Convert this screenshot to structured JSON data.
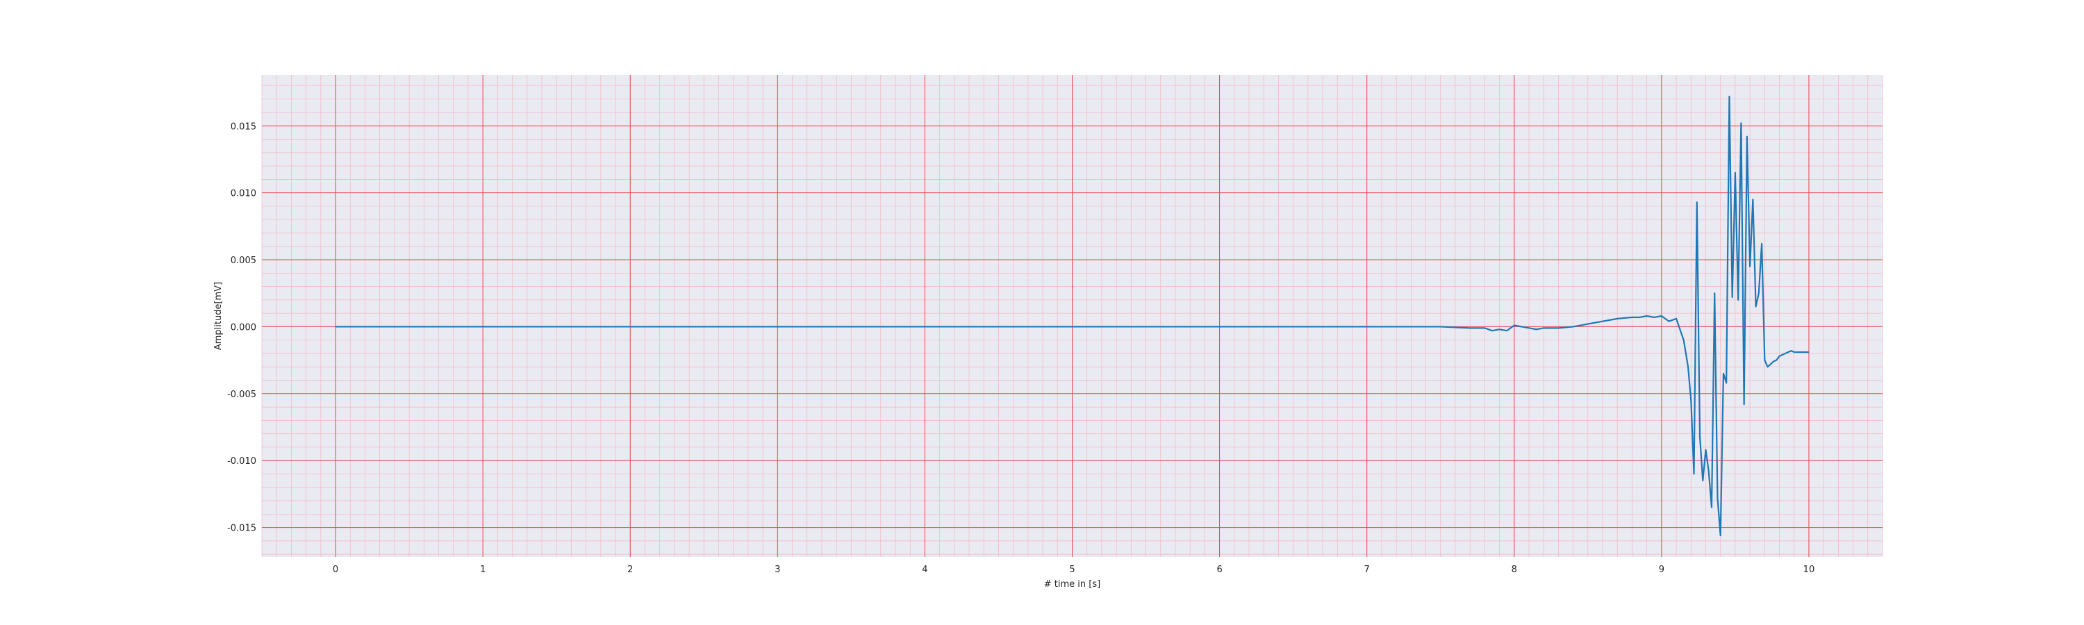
{
  "chart_data": {
    "type": "line",
    "title": "",
    "xlabel": "# time in [s]",
    "ylabel": "Amplitude[mV]",
    "xlim": [
      -0.5,
      10.5
    ],
    "ylim": [
      -0.0172,
      0.0188
    ],
    "x_ticks": [
      0,
      1,
      2,
      3,
      4,
      5,
      6,
      7,
      8,
      9,
      10
    ],
    "x_tick_labels": [
      "0",
      "1",
      "2",
      "3",
      "4",
      "5",
      "6",
      "7",
      "8",
      "9",
      "10"
    ],
    "y_ticks": [
      0.015,
      0.01,
      0.005,
      0.0,
      -0.005,
      -0.01,
      -0.015
    ],
    "y_tick_labels": [
      "0.015",
      "0.010",
      "0.005",
      "0.000",
      "-0.005",
      "-0.010",
      "-0.015"
    ],
    "grid": true,
    "minor_grid": true,
    "colors": {
      "background": "#eaeaf2",
      "major_grid": "#e8464a",
      "minor_grid": "#f2b6c2",
      "series": "#1f77b4"
    },
    "series": [
      {
        "x": [
          0,
          0.5,
          1.0,
          1.5,
          2.0,
          2.5,
          3.0,
          3.5,
          4.0,
          4.5,
          5.0,
          5.5,
          6.0,
          6.5,
          7.0,
          7.2,
          7.5,
          7.7,
          7.8,
          7.85,
          7.9,
          7.95,
          8.0,
          8.05,
          8.1,
          8.15,
          8.2,
          8.3,
          8.4,
          8.5,
          8.6,
          8.7,
          8.8,
          8.85,
          8.9,
          8.95,
          9.0,
          9.05,
          9.1,
          9.15,
          9.18,
          9.2,
          9.22,
          9.24,
          9.26,
          9.28,
          9.3,
          9.32,
          9.34,
          9.36,
          9.38,
          9.4,
          9.42,
          9.44,
          9.46,
          9.48,
          9.5,
          9.52,
          9.54,
          9.56,
          9.58,
          9.6,
          9.62,
          9.64,
          9.66,
          9.68,
          9.7,
          9.72,
          9.74,
          9.76,
          9.78,
          9.8,
          9.82,
          9.84,
          9.86,
          9.88,
          9.9,
          9.92,
          9.95,
          9.98,
          10.0
        ],
        "y": [
          0.0,
          0.0,
          0.0,
          0.0,
          0.0,
          0.0,
          0.0,
          0.0,
          0.0,
          0.0,
          0.0,
          0.0,
          0.0,
          0.0,
          0.0,
          0.0,
          0.0,
          -0.0001,
          -0.0001,
          -0.0003,
          -0.0002,
          -0.0003,
          0.0001,
          0.0,
          -0.0001,
          -0.0002,
          -0.0001,
          -0.0001,
          0.0,
          0.0002,
          0.0004,
          0.0006,
          0.0007,
          0.0007,
          0.0008,
          0.0007,
          0.0008,
          0.0004,
          0.0006,
          -0.001,
          -0.003,
          -0.0055,
          -0.011,
          0.0093,
          -0.0082,
          -0.0115,
          -0.0092,
          -0.0108,
          -0.0135,
          0.0025,
          -0.0128,
          -0.0156,
          -0.0035,
          -0.0042,
          0.0172,
          0.0022,
          0.0115,
          0.002,
          0.0152,
          -0.0058,
          0.0142,
          0.0045,
          0.0095,
          0.0015,
          0.0025,
          0.0062,
          -0.0025,
          -0.003,
          -0.0028,
          -0.0026,
          -0.0025,
          -0.0022,
          -0.0021,
          -0.002,
          -0.0019,
          -0.0018,
          -0.0019,
          -0.0019,
          -0.0019,
          -0.0019,
          -0.0019
        ]
      }
    ]
  }
}
